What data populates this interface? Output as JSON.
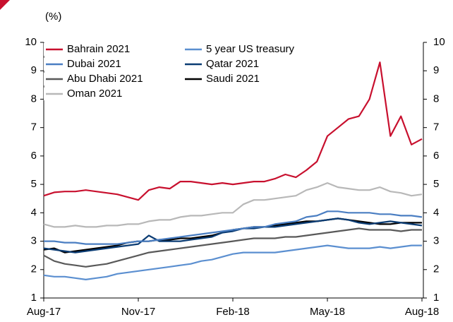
{
  "chart_data": {
    "type": "line",
    "y_label": "(%)",
    "categories": [
      "Aug-17",
      null,
      null,
      null,
      null,
      null,
      null,
      null,
      null,
      "Nov-17",
      null,
      null,
      null,
      null,
      null,
      null,
      null,
      null,
      "Feb-18",
      null,
      null,
      null,
      null,
      null,
      null,
      null,
      null,
      "May-18",
      null,
      null,
      null,
      null,
      null,
      null,
      null,
      null,
      "Aug-18"
    ],
    "ylim": [
      1,
      10
    ],
    "yticks": [
      1,
      2,
      3,
      4,
      5,
      6,
      7,
      8,
      9,
      10
    ],
    "y2lim": [
      1,
      10
    ],
    "y2ticks": [
      1,
      2,
      3,
      4,
      5,
      6,
      7,
      8,
      9,
      10
    ],
    "series": [
      {
        "name": "Bahrain 2021",
        "color": "#c8102e",
        "values": [
          4.6,
          4.72,
          4.75,
          4.75,
          4.8,
          4.75,
          4.7,
          4.65,
          4.55,
          4.45,
          4.8,
          4.9,
          4.85,
          5.1,
          5.1,
          5.05,
          5.0,
          5.05,
          5.0,
          5.05,
          5.1,
          5.1,
          5.2,
          5.35,
          5.25,
          5.5,
          5.8,
          6.7,
          7.0,
          7.3,
          7.4,
          8.0,
          9.3,
          6.7,
          7.4,
          6.4,
          6.6
        ]
      },
      {
        "name": "5 year US treasury",
        "color": "#5b8fd0",
        "values": [
          1.8,
          1.75,
          1.75,
          1.7,
          1.65,
          1.7,
          1.75,
          1.85,
          1.9,
          1.95,
          2.0,
          2.05,
          2.1,
          2.15,
          2.2,
          2.3,
          2.35,
          2.45,
          2.55,
          2.6,
          2.6,
          2.6,
          2.6,
          2.65,
          2.7,
          2.75,
          2.8,
          2.85,
          2.8,
          2.75,
          2.75,
          2.75,
          2.8,
          2.75,
          2.8,
          2.85,
          2.85
        ]
      },
      {
        "name": "Dubai 2021",
        "color": "#4a7ec2",
        "values": [
          3.0,
          3.0,
          2.95,
          2.95,
          2.9,
          2.9,
          2.9,
          2.9,
          2.95,
          3.0,
          3.0,
          3.05,
          3.1,
          3.15,
          3.2,
          3.25,
          3.3,
          3.35,
          3.4,
          3.45,
          3.5,
          3.5,
          3.6,
          3.65,
          3.7,
          3.85,
          3.9,
          4.05,
          4.05,
          4.0,
          4.0,
          4.0,
          3.95,
          3.95,
          3.9,
          3.9,
          3.85
        ]
      },
      {
        "name": "Qatar 2021",
        "color": "#0b3c73",
        "values": [
          2.75,
          2.7,
          2.65,
          2.6,
          2.65,
          2.7,
          2.75,
          2.8,
          2.85,
          2.9,
          3.2,
          3.0,
          3.0,
          3.0,
          3.05,
          3.1,
          3.15,
          3.3,
          3.35,
          3.45,
          3.45,
          3.5,
          3.5,
          3.55,
          3.6,
          3.65,
          3.7,
          3.75,
          3.8,
          3.75,
          3.65,
          3.6,
          3.65,
          3.7,
          3.65,
          3.6,
          3.55
        ]
      },
      {
        "name": "Abu Dhabi 2021",
        "color": "#595959",
        "values": [
          2.5,
          2.3,
          2.2,
          2.15,
          2.1,
          2.15,
          2.2,
          2.3,
          2.4,
          2.5,
          2.6,
          2.65,
          2.7,
          2.75,
          2.8,
          2.85,
          2.9,
          2.95,
          3.0,
          3.05,
          3.1,
          3.1,
          3.1,
          3.15,
          3.15,
          3.2,
          3.25,
          3.3,
          3.35,
          3.4,
          3.45,
          3.4,
          3.4,
          3.4,
          3.35,
          3.4,
          3.4
        ]
      },
      {
        "name": "Saudi 2021",
        "color": "#000000",
        "values": [
          2.7,
          2.75,
          2.6,
          2.65,
          2.7,
          2.75,
          2.8,
          2.85,
          2.95,
          3.0,
          3.0,
          3.05,
          3.05,
          3.1,
          3.1,
          3.15,
          3.2,
          3.3,
          3.4,
          3.45,
          3.5,
          3.5,
          3.55,
          3.6,
          3.65,
          3.7,
          3.7,
          3.75,
          3.8,
          3.75,
          3.7,
          3.65,
          3.6,
          3.6,
          3.65,
          3.65,
          3.65
        ]
      },
      {
        "name": "Oman 2021",
        "color": "#b8b8b8",
        "values": [
          3.6,
          3.5,
          3.5,
          3.55,
          3.5,
          3.5,
          3.55,
          3.55,
          3.6,
          3.6,
          3.7,
          3.75,
          3.75,
          3.85,
          3.9,
          3.9,
          3.95,
          4.0,
          4.0,
          4.3,
          4.45,
          4.45,
          4.5,
          4.55,
          4.6,
          4.8,
          4.9,
          5.05,
          4.9,
          4.85,
          4.8,
          4.8,
          4.9,
          4.75,
          4.7,
          4.6,
          4.65
        ]
      }
    ]
  }
}
